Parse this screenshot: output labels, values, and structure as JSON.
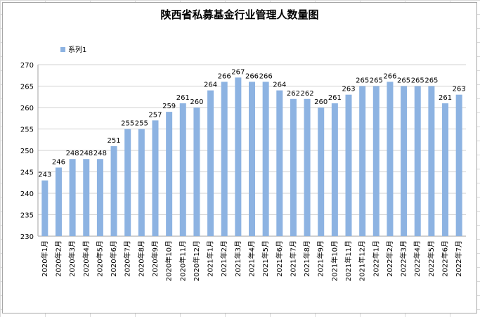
{
  "chart_data": {
    "type": "bar",
    "title": "陕西省私募基金行业管理人数量图",
    "legend": {
      "position": "top-left",
      "entries": [
        "系列1"
      ]
    },
    "series": [
      {
        "name": "系列1",
        "color": "#8db3e2",
        "values": [
          243,
          246,
          248,
          248,
          248,
          251,
          255,
          255,
          257,
          259,
          261,
          260,
          264,
          266,
          267,
          266,
          266,
          264,
          262,
          262,
          260,
          261,
          263,
          265,
          265,
          266,
          265,
          265,
          265,
          261,
          263
        ]
      }
    ],
    "categories": [
      "2020年1月",
      "2020年2月",
      "2020年3月",
      "2020年4月",
      "2020年5月",
      "2020年6月",
      "2020年7月",
      "2020年8月",
      "2020年9月",
      "2020年10月",
      "2020年11月",
      "2020年12月",
      "2021年1月",
      "2021年2月",
      "2021年3月",
      "2021年4月",
      "2021年5月",
      "2021年6月",
      "2021年7月",
      "2021年8月",
      "2021年9月",
      "2021年10月",
      "2021年11月",
      "2021年12月",
      "2022年1月",
      "2022年2月",
      "2022年3月",
      "2022年4月",
      "2022年5月",
      "2022年6月",
      "2022年7月"
    ],
    "ylim": [
      230,
      270
    ],
    "yticks": [
      230,
      235,
      240,
      245,
      250,
      255,
      260,
      265,
      270
    ],
    "grid": true
  }
}
